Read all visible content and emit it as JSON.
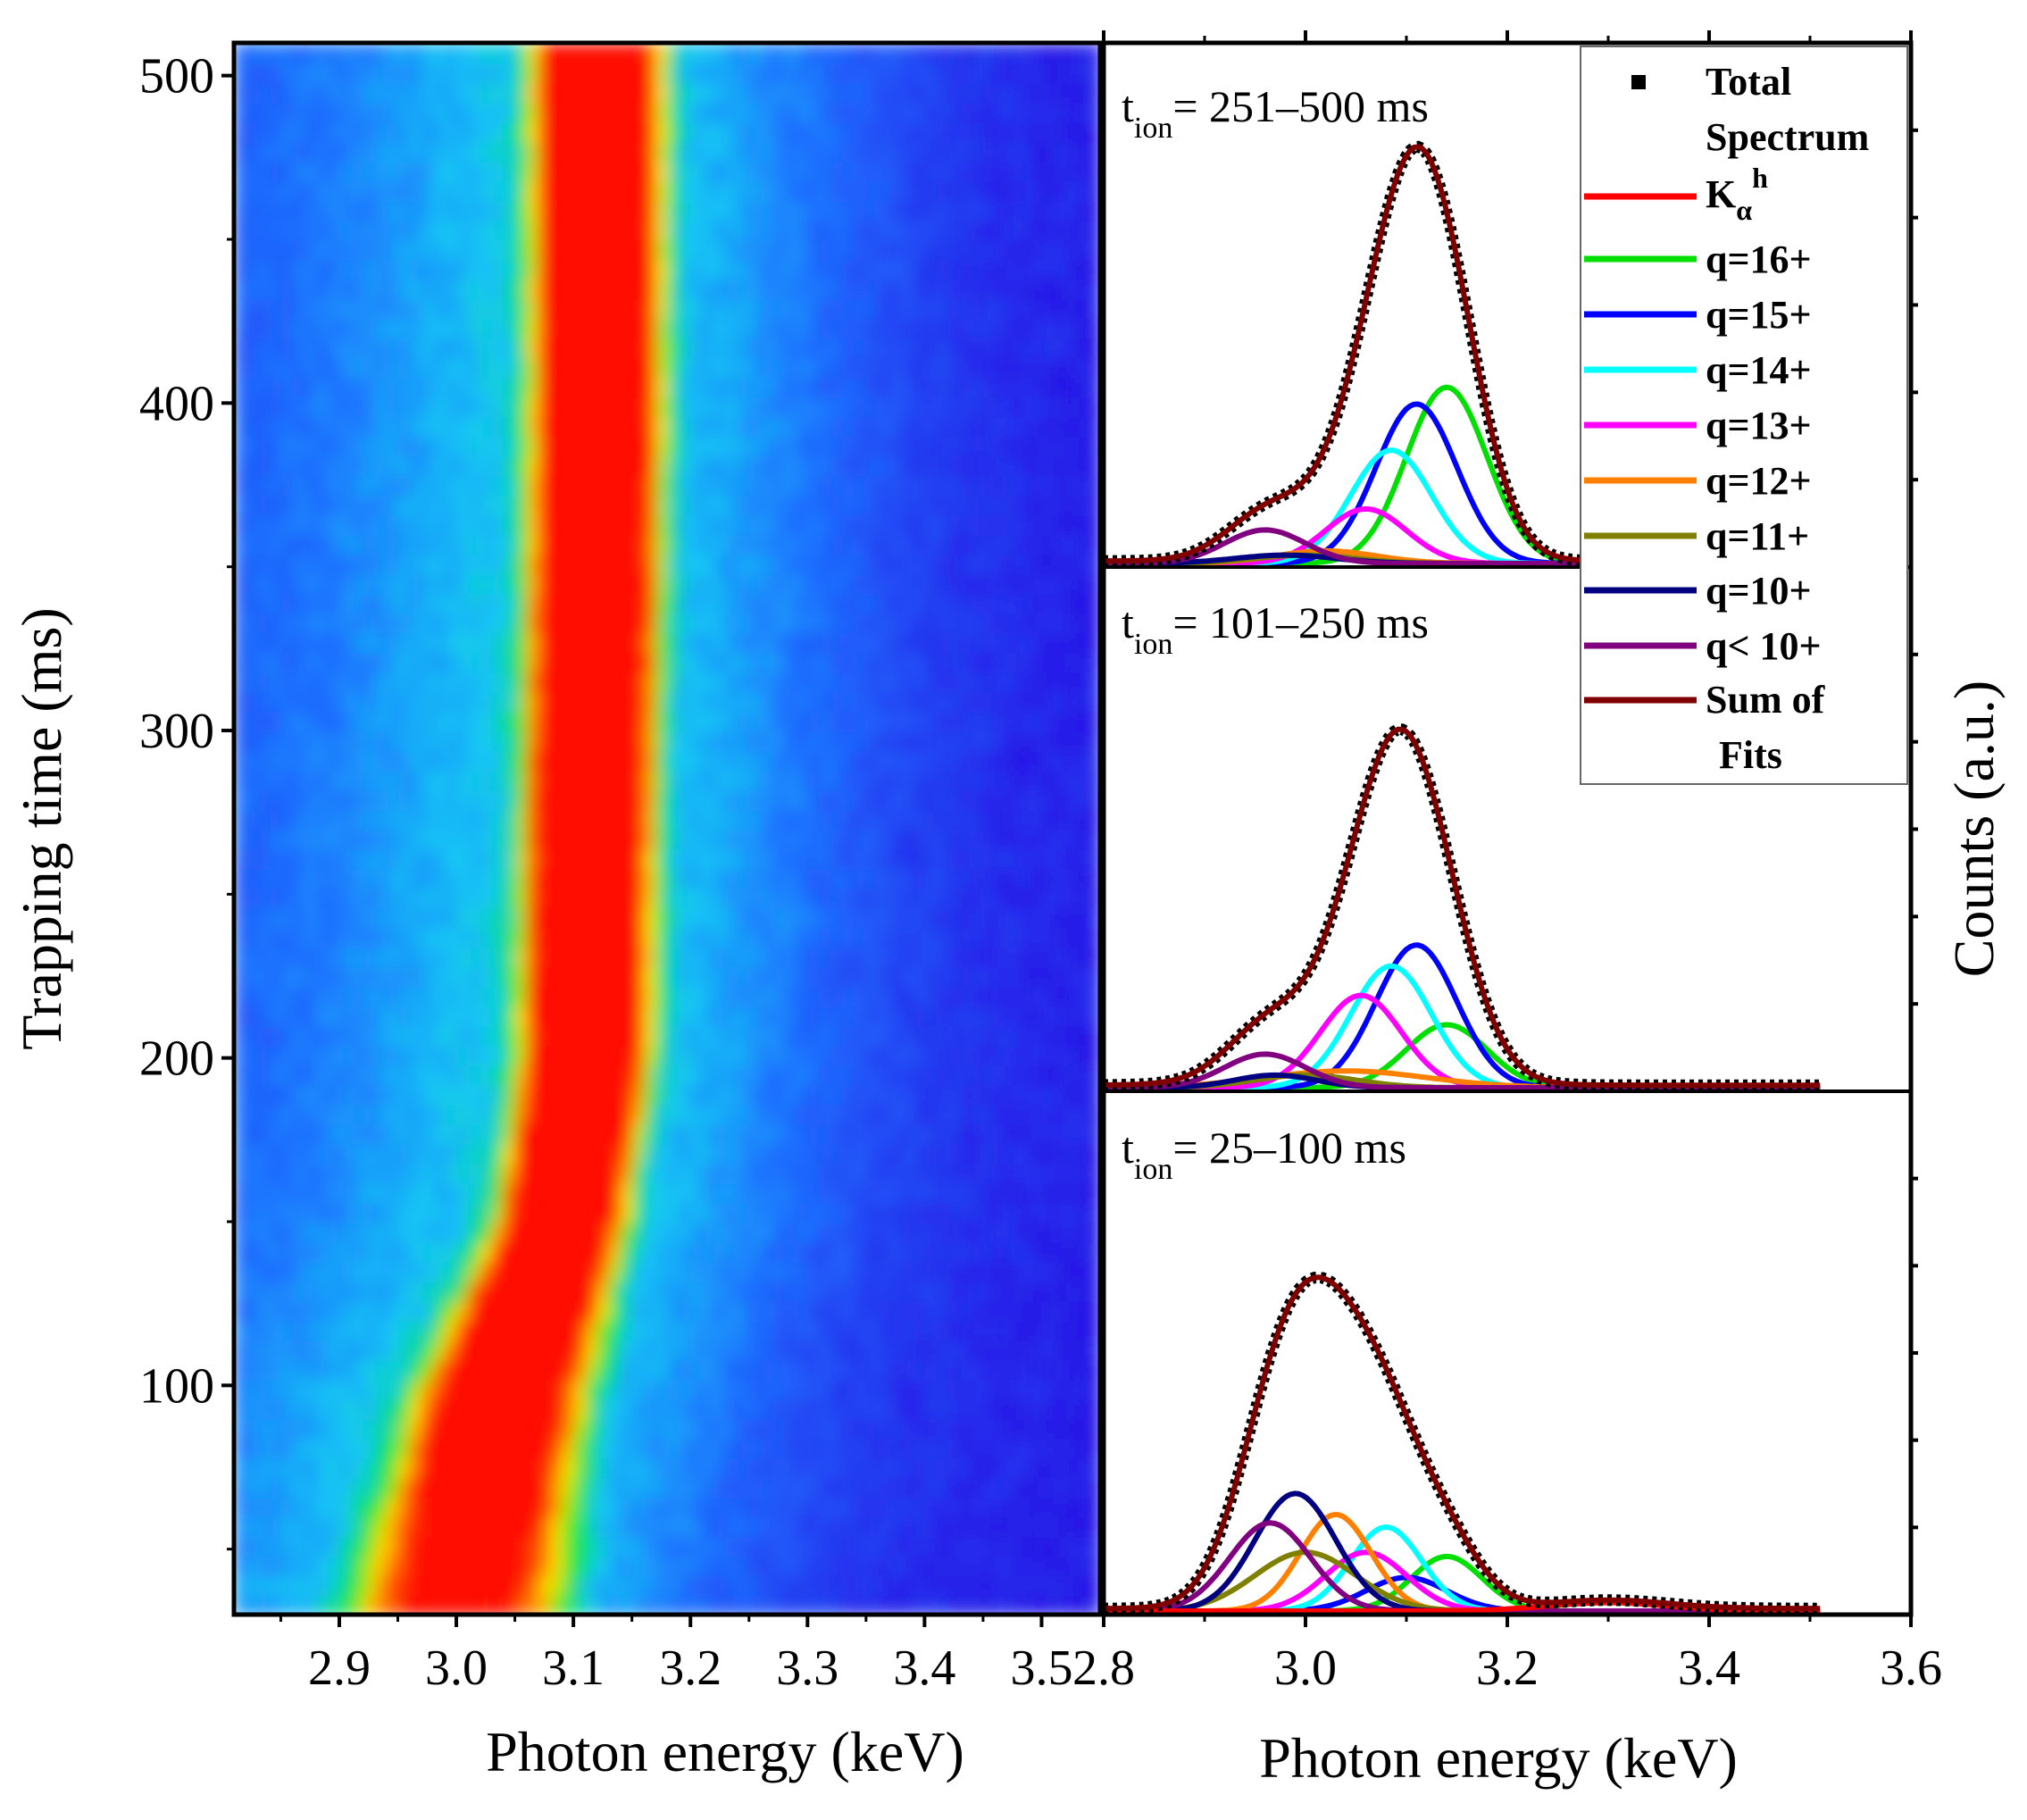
{
  "chart_data": [
    {
      "type": "heatmap",
      "xlabel": "Photon energy (keV)",
      "ylabel": "Trapping time (ms)",
      "xlim": [
        2.81,
        3.55
      ],
      "ylim": [
        30,
        510
      ],
      "xticks": [
        "2.9",
        "3.0",
        "3.1",
        "3.2",
        "3.3",
        "3.4",
        "3.5"
      ],
      "xtick_values": [
        2.9,
        3.0,
        3.1,
        3.2,
        3.3,
        3.4,
        3.5
      ],
      "yticks": [
        "100",
        "200",
        "300",
        "400",
        "500"
      ],
      "ytick_values": [
        100,
        200,
        300,
        400,
        500
      ],
      "ridge": {
        "time": [
          30,
          100,
          150,
          200,
          300,
          400,
          510
        ],
        "center_keV": [
          3.0,
          3.04,
          3.09,
          3.11,
          3.115,
          3.12,
          3.12
        ],
        "width_keV": [
          0.075,
          0.06,
          0.045,
          0.045,
          0.045,
          0.045,
          0.045
        ]
      }
    },
    {
      "type": "line",
      "xlabel": "Photon energy (keV)",
      "ylabel": "Counts (a.u.)",
      "xlim": [
        2.8,
        3.6
      ],
      "xticks": [
        "2.8",
        "3.0",
        "3.2",
        "3.4",
        "3.6"
      ],
      "xtick_values": [
        2.8,
        3.0,
        3.2,
        3.4,
        3.6
      ],
      "legend": [
        "Total Spectrum",
        "Kαh",
        "q=16+",
        "q=15+",
        "q=14+",
        "q=13+",
        "q=12+",
        "q=11+",
        "q=10+",
        "q< 10+",
        "Sum of Fits"
      ],
      "panels": [
        {
          "label": "t_ion= 251–500 ms",
          "components": [
            {
              "name": "q=16+",
              "center": 3.14,
              "amp": 0.42,
              "sigma": 0.04
            },
            {
              "name": "q=15+",
              "center": 3.11,
              "amp": 0.38,
              "sigma": 0.04
            },
            {
              "name": "q=14+",
              "center": 3.085,
              "amp": 0.27,
              "sigma": 0.04
            },
            {
              "name": "q=13+",
              "center": 3.06,
              "amp": 0.13,
              "sigma": 0.04
            },
            {
              "name": "q=12+",
              "center": 3.02,
              "amp": 0.03,
              "sigma": 0.05
            },
            {
              "name": "q=11+",
              "center": 3.0,
              "amp": 0.02,
              "sigma": 0.05
            },
            {
              "name": "q=10+",
              "center": 2.98,
              "amp": 0.02,
              "sigma": 0.05
            },
            {
              "name": "q< 10+",
              "center": 2.96,
              "amp": 0.08,
              "sigma": 0.04
            }
          ]
        },
        {
          "label": "t_ion= 101–250 ms",
          "components": [
            {
              "name": "q=16+",
              "center": 3.14,
              "amp": 0.15,
              "sigma": 0.04
            },
            {
              "name": "q=15+",
              "center": 3.11,
              "amp": 0.34,
              "sigma": 0.04
            },
            {
              "name": "q=14+",
              "center": 3.085,
              "amp": 0.29,
              "sigma": 0.04
            },
            {
              "name": "q=13+",
              "center": 3.055,
              "amp": 0.22,
              "sigma": 0.04
            },
            {
              "name": "q=12+",
              "center": 3.04,
              "amp": 0.04,
              "sigma": 0.08
            },
            {
              "name": "q=11+",
              "center": 3.0,
              "amp": 0.03,
              "sigma": 0.05
            },
            {
              "name": "q=10+",
              "center": 2.97,
              "amp": 0.03,
              "sigma": 0.04
            },
            {
              "name": "q< 10+",
              "center": 2.96,
              "amp": 0.08,
              "sigma": 0.04
            }
          ]
        },
        {
          "label": "t_ion= 25–100 ms",
          "components": [
            {
              "name": "q=16+",
              "center": 3.14,
              "amp": 0.13,
              "sigma": 0.035
            },
            {
              "name": "q=15+",
              "center": 3.1,
              "amp": 0.08,
              "sigma": 0.04
            },
            {
              "name": "q=14+",
              "center": 3.08,
              "amp": 0.2,
              "sigma": 0.035
            },
            {
              "name": "q=13+",
              "center": 3.06,
              "amp": 0.14,
              "sigma": 0.04
            },
            {
              "name": "q=12+",
              "center": 3.03,
              "amp": 0.23,
              "sigma": 0.035
            },
            {
              "name": "q=11+",
              "center": 3.0,
              "amp": 0.14,
              "sigma": 0.05
            },
            {
              "name": "q=10+",
              "center": 2.99,
              "amp": 0.28,
              "sigma": 0.04
            },
            {
              "name": "q< 10+",
              "center": 2.965,
              "amp": 0.21,
              "sigma": 0.04
            },
            {
              "name": "Kαh",
              "center": 3.3,
              "amp": 0.02,
              "sigma": 0.06
            }
          ]
        }
      ]
    }
  ],
  "legend_labels": {
    "total_1": "Total",
    "total_2": "Spectrum",
    "kalpha": "K",
    "kalpha_sub": "α",
    "kalpha_sup": "h",
    "q16": "q=16+",
    "q15": "q=15+",
    "q14": "q=14+",
    "q13": "q=13+",
    "q12": "q=12+",
    "q11": "q=11+",
    "q10": "q=10+",
    "qlt10": "q< 10+",
    "sum_1": "Sum of",
    "sum_2": "Fits"
  },
  "panel_text": {
    "t": "t",
    "ion": "ion",
    "p1": "= 251–500 ms",
    "p2": "= 101–250 ms",
    "p3": "= 25–100 ms"
  },
  "colors": {
    "Total Spectrum": "#000000",
    "Kαh": "#ff0000",
    "q=16+": "#00e000",
    "q=15+": "#0000ff",
    "q=14+": "#00ffff",
    "q=13+": "#ff00ff",
    "q=12+": "#ff8000",
    "q=11+": "#808000",
    "q=10+": "#000080",
    "q< 10+": "#800080",
    "Sum of Fits": "#800000"
  }
}
